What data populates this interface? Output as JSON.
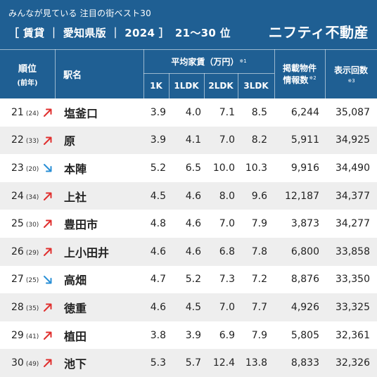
{
  "banner": {
    "subtitle": "みんなが見ている 注目の街ベスト30",
    "title": "［ 賃貸 ｜ 愛知県版 ｜ 2024 ］　21〜30 位",
    "brand": "ニフティ不動産"
  },
  "header": {
    "rank": "順位",
    "rank_prev": "(前年)",
    "station": "駅名",
    "rent_group": "平均家賃（万円）",
    "rent_note": "※1",
    "rent_cols": [
      "1K",
      "1LDK",
      "2LDK",
      "3LDK"
    ],
    "listings_line1": "掲載物件",
    "listings_line2": "情報数",
    "listings_note": "※2",
    "views": "表示回数",
    "views_note": "※3"
  },
  "colors": {
    "header_bg": "#1f5f93",
    "up_arrow": "#e0302f",
    "down_arrow": "#2a8fd6",
    "alt_row": "#eeeeee"
  },
  "rows": [
    {
      "rank": "21",
      "prev": "(24)",
      "trend": "up",
      "station": "塩釜口",
      "r1k": "3.9",
      "r1ldk": "4.0",
      "r2ldk": "7.1",
      "r3ldk": "8.5",
      "listings": "6,244",
      "views": "35,087"
    },
    {
      "rank": "22",
      "prev": "(33)",
      "trend": "up",
      "station": "原",
      "r1k": "3.9",
      "r1ldk": "4.1",
      "r2ldk": "7.0",
      "r3ldk": "8.2",
      "listings": "5,911",
      "views": "34,925"
    },
    {
      "rank": "23",
      "prev": "(20)",
      "trend": "down",
      "station": "本陣",
      "r1k": "5.2",
      "r1ldk": "6.5",
      "r2ldk": "10.0",
      "r3ldk": "10.3",
      "listings": "9,916",
      "views": "34,490"
    },
    {
      "rank": "24",
      "prev": "(34)",
      "trend": "up",
      "station": "上社",
      "r1k": "4.5",
      "r1ldk": "4.6",
      "r2ldk": "8.0",
      "r3ldk": "9.6",
      "listings": "12,187",
      "views": "34,377"
    },
    {
      "rank": "25",
      "prev": "(30)",
      "trend": "up",
      "station": "豊田市",
      "r1k": "4.8",
      "r1ldk": "4.6",
      "r2ldk": "7.0",
      "r3ldk": "7.9",
      "listings": "3,873",
      "views": "34,277"
    },
    {
      "rank": "26",
      "prev": "(29)",
      "trend": "up",
      "station": "上小田井",
      "r1k": "4.6",
      "r1ldk": "4.6",
      "r2ldk": "6.8",
      "r3ldk": "7.8",
      "listings": "6,800",
      "views": "33,858"
    },
    {
      "rank": "27",
      "prev": "(25)",
      "trend": "down",
      "station": "高畑",
      "r1k": "4.7",
      "r1ldk": "5.2",
      "r2ldk": "7.3",
      "r3ldk": "7.2",
      "listings": "8,876",
      "views": "33,350"
    },
    {
      "rank": "28",
      "prev": "(35)",
      "trend": "up",
      "station": "徳重",
      "r1k": "4.6",
      "r1ldk": "4.5",
      "r2ldk": "7.0",
      "r3ldk": "7.7",
      "listings": "4,926",
      "views": "33,325"
    },
    {
      "rank": "29",
      "prev": "(41)",
      "trend": "up",
      "station": "植田",
      "r1k": "3.8",
      "r1ldk": "3.9",
      "r2ldk": "6.9",
      "r3ldk": "7.9",
      "listings": "5,805",
      "views": "32,361"
    },
    {
      "rank": "30",
      "prev": "(49)",
      "trend": "up",
      "station": "池下",
      "r1k": "5.3",
      "r1ldk": "5.7",
      "r2ldk": "12.4",
      "r3ldk": "13.8",
      "listings": "8,833",
      "views": "32,326"
    }
  ]
}
